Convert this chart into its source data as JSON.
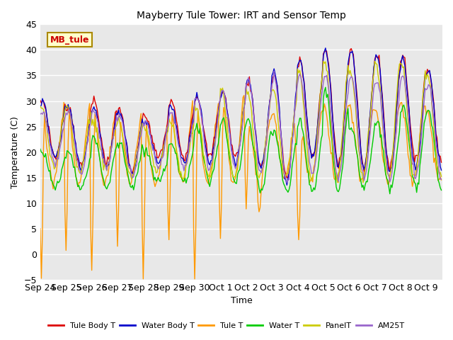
{
  "title": "Mayberry Tule Tower: IRT and Sensor Temp",
  "ylabel": "Temperature (C)",
  "xlabel": "Time",
  "ylim": [
    -5,
    45
  ],
  "xlim": [
    0,
    375
  ],
  "xtick_labels": [
    "Sep 24",
    "Sep 25",
    "Sep 26",
    "Sep 27",
    "Sep 28",
    "Sep 29",
    "Sep 30",
    "Oct 1",
    "Oct 2",
    "Oct 3",
    "Oct 4",
    "Oct 5",
    "Oct 6",
    "Oct 7",
    "Oct 8",
    "Oct 9"
  ],
  "xtick_positions": [
    0,
    24,
    48,
    72,
    96,
    120,
    144,
    168,
    192,
    216,
    240,
    264,
    288,
    312,
    336,
    360
  ],
  "legend_labels": [
    "Tule Body T",
    "Water Body T",
    "Tule T",
    "Water T",
    "PanelT",
    "AM25T"
  ],
  "legend_colors": [
    "#dd0000",
    "#0000cc",
    "#ff9900",
    "#00cc00",
    "#cccc00",
    "#9966cc"
  ],
  "annotation_text": "MB_tule",
  "annotation_color": "#cc0000",
  "annotation_bg": "#ffffcc",
  "annotation_border": "#aa8800",
  "bg_color": "#e8e8e8",
  "grid_color": "#ffffff"
}
